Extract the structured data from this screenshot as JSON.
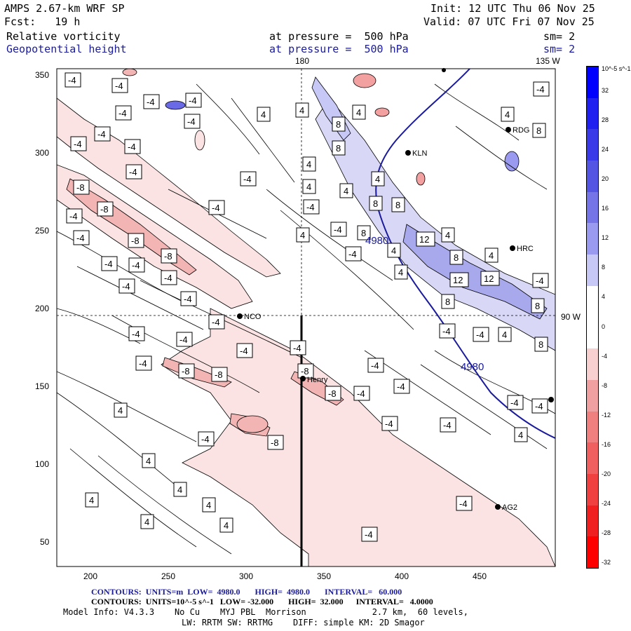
{
  "header": {
    "model_title": "AMPS 2.67-km WRF SP",
    "init": "Init: 12 UTC Thu 06 Nov 25",
    "forecast": "Fcst:   19 h",
    "valid": "Valid: 07 UTC Fri 07 Nov 25",
    "field1_name": "Relative vorticity",
    "field1_level": "at pressure =  500 hPa",
    "field1_sm": "sm= 2",
    "field2_name": "Geopotential height",
    "field2_level": "at pressure =  500 hPa",
    "field2_sm": "sm= 2"
  },
  "axes": {
    "x_ticks": [
      "200",
      "250",
      "300",
      "350",
      "400",
      "450"
    ],
    "y_ticks": [
      "350",
      "300",
      "250",
      "200",
      "150",
      "100",
      "50"
    ],
    "lon_labels": {
      "top_180": "180",
      "top_135": "135 W",
      "right_90": "90 W"
    }
  },
  "colorbar": {
    "unit_label": "10^-5 s^-1",
    "levels": [
      "32",
      "28",
      "24",
      "20",
      "16",
      "12",
      "8",
      "4",
      "0",
      "-4",
      "-8",
      "-12",
      "-16",
      "-20",
      "-24",
      "-28",
      "-32"
    ],
    "colors": [
      "#0000ff",
      "#2020f0",
      "#3a3ae8",
      "#5555e4",
      "#7575e8",
      "#9a9af0",
      "#c8c8f7",
      "#ffffff",
      "#ffffff",
      "#f8d0d0",
      "#f0a0a0",
      "#f08080",
      "#f06060",
      "#f04040",
      "#f02020",
      "#ff0000"
    ]
  },
  "stations": [
    {
      "name": "HRC",
      "label": "HRC"
    },
    {
      "name": "NCO",
      "label": "NCO"
    },
    {
      "name": "Henry",
      "label": "Henry"
    },
    {
      "name": "KLN",
      "label": "KLN"
    },
    {
      "name": "AG2",
      "label": "AG2"
    },
    {
      "name": "RDG",
      "label": "RDG"
    }
  ],
  "contour_labels": {
    "height": "4980",
    "vorticity": [
      "-4",
      "-8",
      "4",
      "8",
      "12"
    ]
  },
  "footer": {
    "line1": "CONTOURS:  UNITS=m  LOW=  4980.0       HIGH=  4980.0       INTERVAL=   60.000",
    "line2": "CONTOURS:  UNITS=10^-5 s^-1   LOW= -32.000       HIGH=  32.000      INTERVAL=   4.0000",
    "line3": "Model Info: V4.3.3    No Cu    MYJ PBL  Morrison             2.7 km,  60 levels,",
    "line4": "LW: RRTM SW: RRTMG    DIFF: simple KM: 2D Smagor"
  }
}
